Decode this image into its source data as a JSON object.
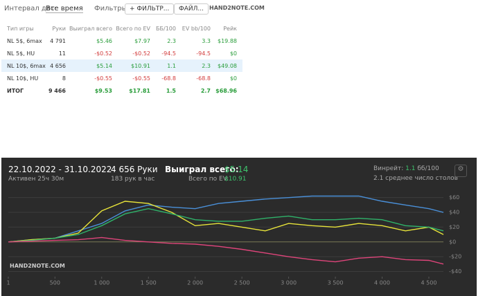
{
  "toolbar": {
    "date_label": "Интервал дат:",
    "date_value": "Все время",
    "filters_label": "Фильтры",
    "plus": "+",
    "filter_button": "ФИЛЬТР...",
    "file_button": "ФАЙЛ...",
    "logo": "HAND2NOTE.COM"
  },
  "table": {
    "header": [
      "Тип игры",
      "Руки",
      "Выиграл всего",
      "Всего по EV",
      "ББ/100",
      "EV bb/100",
      "Рейк"
    ],
    "rows": [
      [
        "NL 5$, 6max",
        "4 791",
        "$5.46",
        "$7.97",
        "2.3",
        "3.3",
        "$19.88"
      ],
      [
        "NL 5$, HU",
        "11",
        "-$0.52",
        "-$0.52",
        "-94.5",
        "-94.5",
        "$0"
      ],
      [
        "NL 10$, 6max",
        "4 656",
        "$5.14",
        "$10.91",
        "1.1",
        "2.3",
        "$49.08"
      ],
      [
        "NL 10$, HU",
        "8",
        "-$0.55",
        "-$0.55",
        "-68.8",
        "-68.8",
        "$0"
      ],
      [
        "ИТОГ",
        "9 466",
        "$9.53",
        "$17.81",
        "1.5",
        "2.7",
        "$68.96"
      ]
    ]
  },
  "summary": {
    "dates": "22.10.2022 - 31.10.2022",
    "active": "Активен 25ч 30м",
    "hands": "4 656 Руки",
    "per_hour": "183 рук в час",
    "won_label": "Выиграл всего:",
    "won_value": "$5.14",
    "ev_label": "Всего по EV:",
    "ev_value": "$10.91",
    "winrate_label": "Винрейт:",
    "winrate_value": "1.1",
    "winrate_unit": "бб/100",
    "tables": "2.1 среднее число столов",
    "logo": "HAND2NOTE.COM"
  },
  "chart_data": {
    "type": "line",
    "x": [
      1,
      250,
      500,
      750,
      1000,
      1250,
      1500,
      1750,
      2000,
      2250,
      2500,
      2750,
      3000,
      3250,
      3500,
      3750,
      4000,
      4250,
      4500,
      4656
    ],
    "series": [
      {
        "color": "#4a90d9",
        "values": [
          0,
          3,
          5,
          15,
          25,
          42,
          50,
          47,
          45,
          52,
          55,
          58,
          60,
          62,
          62,
          62,
          55,
          50,
          45,
          40
        ]
      },
      {
        "color": "#e8e43a",
        "values": [
          0,
          3,
          5,
          12,
          42,
          55,
          52,
          40,
          22,
          25,
          20,
          15,
          25,
          22,
          20,
          25,
          22,
          15,
          20,
          10
        ]
      },
      {
        "color": "#2fb36a",
        "values": [
          0,
          2,
          5,
          10,
          22,
          38,
          45,
          38,
          30,
          28,
          28,
          32,
          35,
          30,
          30,
          32,
          30,
          22,
          20,
          15
        ]
      },
      {
        "color": "#e0457b",
        "values": [
          0,
          1,
          2,
          3,
          6,
          2,
          0,
          -2,
          -3,
          -6,
          -10,
          -15,
          -20,
          -24,
          -27,
          -22,
          -20,
          -24,
          -25,
          -30
        ]
      }
    ],
    "xlim": [
      1,
      4656
    ],
    "ylim": [
      -47,
      70
    ],
    "xticks": [
      1,
      500,
      {
        "value": 1000,
        "label": "1 000"
      },
      {
        "value": 1500,
        "label": "1 500"
      },
      {
        "value": 2000,
        "label": "2 000"
      },
      {
        "value": 2500,
        "label": "2 500"
      },
      {
        "value": 3000,
        "label": "3 000"
      },
      {
        "value": 3500,
        "label": "3 500"
      },
      {
        "value": 4000,
        "label": "4 000"
      },
      {
        "value": 4500,
        "label": "4 500"
      }
    ],
    "yticks": [
      {
        "value": 60,
        "label": "$60"
      },
      {
        "value": 40,
        "label": "$40"
      },
      {
        "value": 20,
        "label": "$20"
      },
      {
        "value": 0,
        "label": "$0"
      },
      {
        "value": -20,
        "label": "-$20"
      },
      {
        "value": -40,
        "label": "-$40"
      }
    ],
    "grid": true
  }
}
